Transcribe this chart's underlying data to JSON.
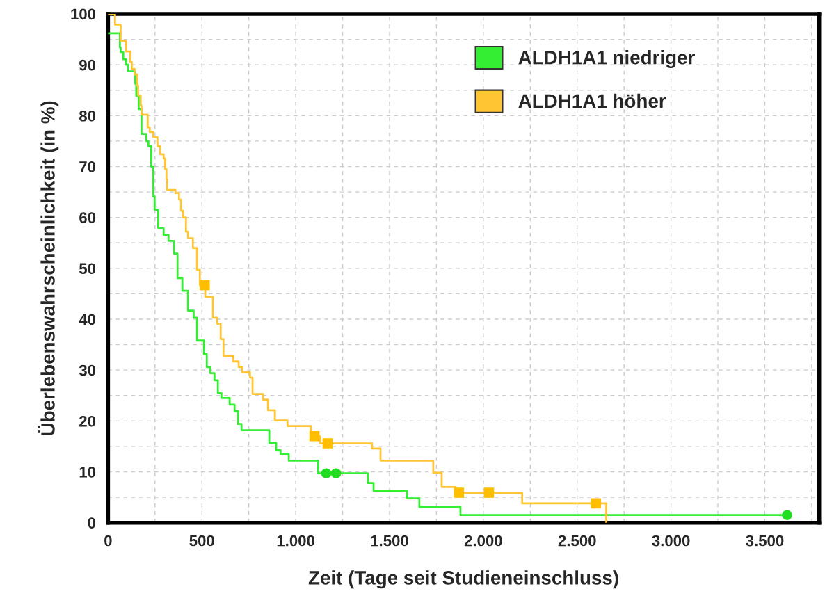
{
  "chart_data": {
    "type": "step",
    "xlabel": "Zeit (Tage seit Studieneinschluss)",
    "ylabel": "Überlebenswahrscheinlichkeit (in %)",
    "xlim": [
      0,
      3790
    ],
    "ylim": [
      0,
      100
    ],
    "xticks": [
      0,
      {
        "value": 250,
        "label": null
      },
      500,
      {
        "value": 750,
        "label": null
      },
      {
        "value": 1000,
        "label": "1.000"
      },
      {
        "value": 1250,
        "label": null
      },
      {
        "value": 1500,
        "label": "1.500"
      },
      {
        "value": 1750,
        "label": null
      },
      {
        "value": 2000,
        "label": "2.000"
      },
      {
        "value": 2250,
        "label": null
      },
      {
        "value": 2500,
        "label": "2.500"
      },
      {
        "value": 2750,
        "label": null
      },
      {
        "value": 3000,
        "label": "3.000"
      },
      {
        "value": 3250,
        "label": null
      },
      {
        "value": 3500,
        "label": "3.500"
      },
      {
        "value": 3750,
        "label": null
      }
    ],
    "yticks": [
      0,
      {
        "value": 5,
        "label": null
      },
      10,
      {
        "value": 15,
        "label": null
      },
      20,
      {
        "value": 25,
        "label": null
      },
      30,
      {
        "value": 35,
        "label": null
      },
      40,
      {
        "value": 45,
        "label": null
      },
      50,
      {
        "value": 55,
        "label": null
      },
      60,
      {
        "value": 65,
        "label": null
      },
      70,
      {
        "value": 75,
        "label": null
      },
      80,
      {
        "value": 85,
        "label": null
      },
      90,
      {
        "value": 95,
        "label": null
      },
      100
    ],
    "grid": true,
    "legend": "top right",
    "series": [
      {
        "name": "ALDH1A1 niedriger",
        "color": "#33ee33",
        "x": [
          0,
          63,
          67,
          81,
          96,
          107,
          144,
          150,
          163,
          178,
          204,
          215,
          230,
          241,
          248,
          267,
          296,
          322,
          352,
          370,
          396,
          426,
          456,
          474,
          511,
          526,
          544,
          567,
          585,
          604,
          648,
          674,
          693,
          711,
          859,
          896,
          919,
          963,
          1119,
          1385,
          1415,
          1593,
          1659,
          1878,
          3619
        ],
        "values": [
          96.2,
          93.4,
          92.5,
          91.1,
          90,
          88.7,
          86.3,
          83.9,
          81.3,
          76.4,
          75,
          74,
          70,
          64.1,
          61.5,
          57.9,
          56.6,
          55.4,
          52.9,
          48.1,
          45.6,
          41.7,
          40.3,
          35.8,
          33.1,
          30.6,
          29.4,
          28,
          25.5,
          24.5,
          23.2,
          21.9,
          19.4,
          18.2,
          15.7,
          14.3,
          13.5,
          12.2,
          9.7,
          7.8,
          6.3,
          4.8,
          3.1,
          1.5,
          1.5
        ]
      },
      {
        "name": "ALDH1A1 höher",
        "color": "#ffc533",
        "x": [
          0,
          37,
          67,
          96,
          118,
          126,
          141,
          155,
          160,
          174,
          178,
          211,
          222,
          241,
          263,
          278,
          296,
          304,
          311,
          315,
          359,
          378,
          389,
          400,
          415,
          426,
          452,
          474,
          489,
          518,
          559,
          581,
          600,
          615,
          667,
          696,
          715,
          756,
          770,
          826,
          852,
          889,
          956,
          1081,
          1130,
          1407,
          1452,
          1733,
          1778,
          1852,
          2207,
          2655
        ],
        "values": [
          100,
          97.9,
          94.7,
          92.6,
          90.6,
          89.2,
          88.1,
          85.9,
          84,
          82,
          80.2,
          77.7,
          76.8,
          75.8,
          74,
          72.4,
          71.6,
          69.5,
          67.5,
          65.4,
          64.8,
          63.5,
          61.3,
          60,
          57.2,
          55.9,
          54,
          49.7,
          46.7,
          44.4,
          40.3,
          39.1,
          36.1,
          32.8,
          31.7,
          30.6,
          29.6,
          28.5,
          25.3,
          24.2,
          22.1,
          20.1,
          19,
          17,
          15.6,
          14.6,
          12.2,
          9.8,
          7,
          5.9,
          3.8,
          0
        ]
      },
      {
        "color": "#22dd22",
        "type": "scatter",
        "marker": "circle",
        "x": [
          1163,
          1215,
          3619
        ],
        "values": [
          9.7,
          9.7,
          1.5
        ]
      },
      {
        "color": "#ffbf00",
        "type": "scatter",
        "marker": "square",
        "x": [
          515,
          1100,
          1170,
          1870,
          2030,
          2600
        ],
        "values": [
          46.7,
          17,
          15.6,
          5.9,
          5.9,
          3.8
        ]
      }
    ]
  }
}
